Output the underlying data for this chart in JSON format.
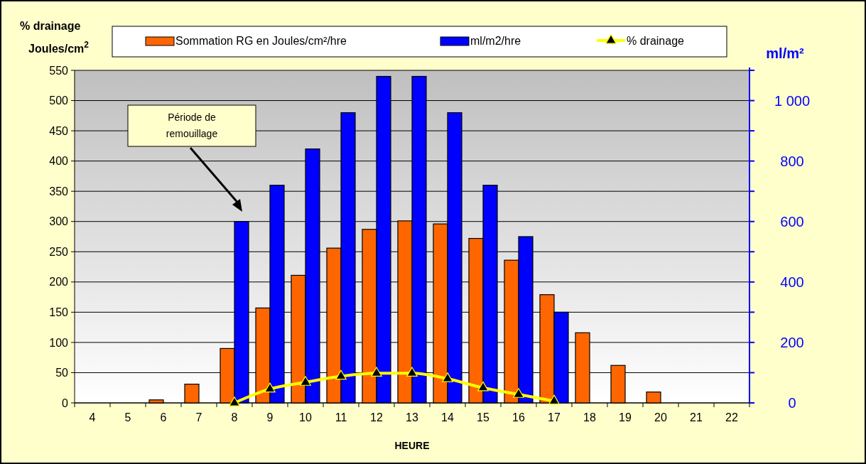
{
  "chart_data": {
    "type": "bar",
    "xlabel": "HEURE",
    "ylabel": "% drainage\nJoules/cm$^{2}$",
    "y2label": "ml/m²",
    "categories": [
      "4",
      "5",
      "6",
      "7",
      "8",
      "9",
      "10",
      "11",
      "12",
      "13",
      "14",
      "15",
      "16",
      "17",
      "18",
      "19",
      "20",
      "21",
      "22"
    ],
    "series": [
      {
        "name": "Sommation RG en Joules/cm²/hre",
        "color": "#ff6600",
        "values": [
          null,
          null,
          5,
          31,
          90,
          157,
          211,
          256,
          287,
          301,
          296,
          272,
          236,
          179,
          116,
          62,
          18,
          null,
          null
        ]
      },
      {
        "name": "ml/m2/hre",
        "color": "#0000ff",
        "axis": "y2",
        "values": [
          null,
          null,
          null,
          null,
          600,
          720,
          840,
          960,
          1080,
          1080,
          960,
          720,
          550,
          300,
          null,
          null,
          null,
          null,
          null
        ]
      },
      {
        "name": "% drainage",
        "type": "line",
        "color": "#ffff00",
        "marker": "triangle",
        "values": [
          null,
          null,
          null,
          null,
          0,
          23,
          34,
          44,
          49,
          49,
          40,
          25,
          14,
          3,
          null,
          null,
          null,
          null,
          null
        ]
      }
    ],
    "ylim": [
      0,
      550
    ],
    "yticks": [
      0,
      50,
      100,
      150,
      200,
      250,
      300,
      350,
      400,
      450,
      500,
      550
    ],
    "y2lim": [
      0,
      1100
    ],
    "y2ticks": [
      0,
      {
        "value": 100,
        "label": null
      },
      200,
      {
        "value": 300,
        "label": null
      },
      400,
      {
        "value": 500,
        "label": null
      },
      600,
      {
        "value": 700,
        "label": null
      },
      800,
      {
        "value": 900,
        "label": null
      },
      {
        "value": 1000,
        "label": "1 000"
      },
      {
        "value": 1100,
        "label": null
      }
    ],
    "grid": "y",
    "legend": "top",
    "annotations": [
      "Période de remouillage"
    ]
  }
}
